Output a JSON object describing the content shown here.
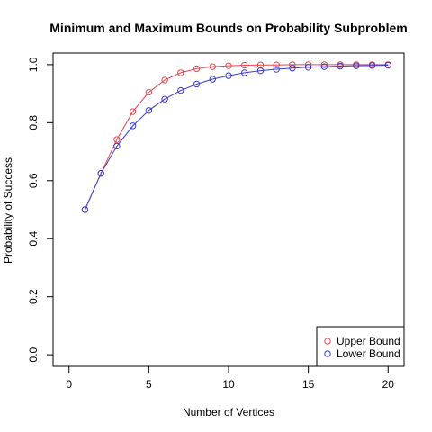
{
  "chart_data": {
    "type": "line",
    "title": "Minimum and Maximum Bounds on Probability Subproblem",
    "xlabel": "Number of Vertices",
    "ylabel": "Probability of Success",
    "xlim": [
      -1,
      21
    ],
    "ylim": [
      -0.04,
      1.04
    ],
    "x_ticks": [
      0,
      5,
      10,
      15,
      20
    ],
    "y_ticks": [
      0.0,
      0.2,
      0.4,
      0.6,
      0.8,
      1.0
    ],
    "x_tick_labels": [
      "0",
      "5",
      "10",
      "15",
      "20"
    ],
    "y_tick_labels": [
      "0.0",
      "0.2",
      "0.4",
      "0.6",
      "0.8",
      "1.0"
    ],
    "grid": false,
    "legend_position": "bottom-right",
    "x": [
      1,
      2,
      3,
      4,
      5,
      6,
      7,
      8,
      9,
      10,
      11,
      12,
      13,
      14,
      15,
      16,
      17,
      18,
      19,
      20
    ],
    "series": [
      {
        "name": "Upper Bound",
        "color": "#e8474f",
        "marker": "open-circle",
        "values": [
          0.5,
          0.625,
          0.742,
          0.838,
          0.905,
          0.947,
          0.972,
          0.986,
          0.993,
          0.996,
          0.998,
          0.999,
          0.999,
          1.0,
          1.0,
          1.0,
          1.0,
          1.0,
          1.0,
          1.0
        ]
      },
      {
        "name": "Lower Bound",
        "color": "#3a3ad6",
        "marker": "open-circle",
        "values": [
          0.5,
          0.625,
          0.719,
          0.789,
          0.842,
          0.881,
          0.911,
          0.933,
          0.95,
          0.962,
          0.972,
          0.979,
          0.984,
          0.988,
          0.991,
          0.993,
          0.995,
          0.996,
          0.997,
          0.998
        ]
      }
    ]
  }
}
